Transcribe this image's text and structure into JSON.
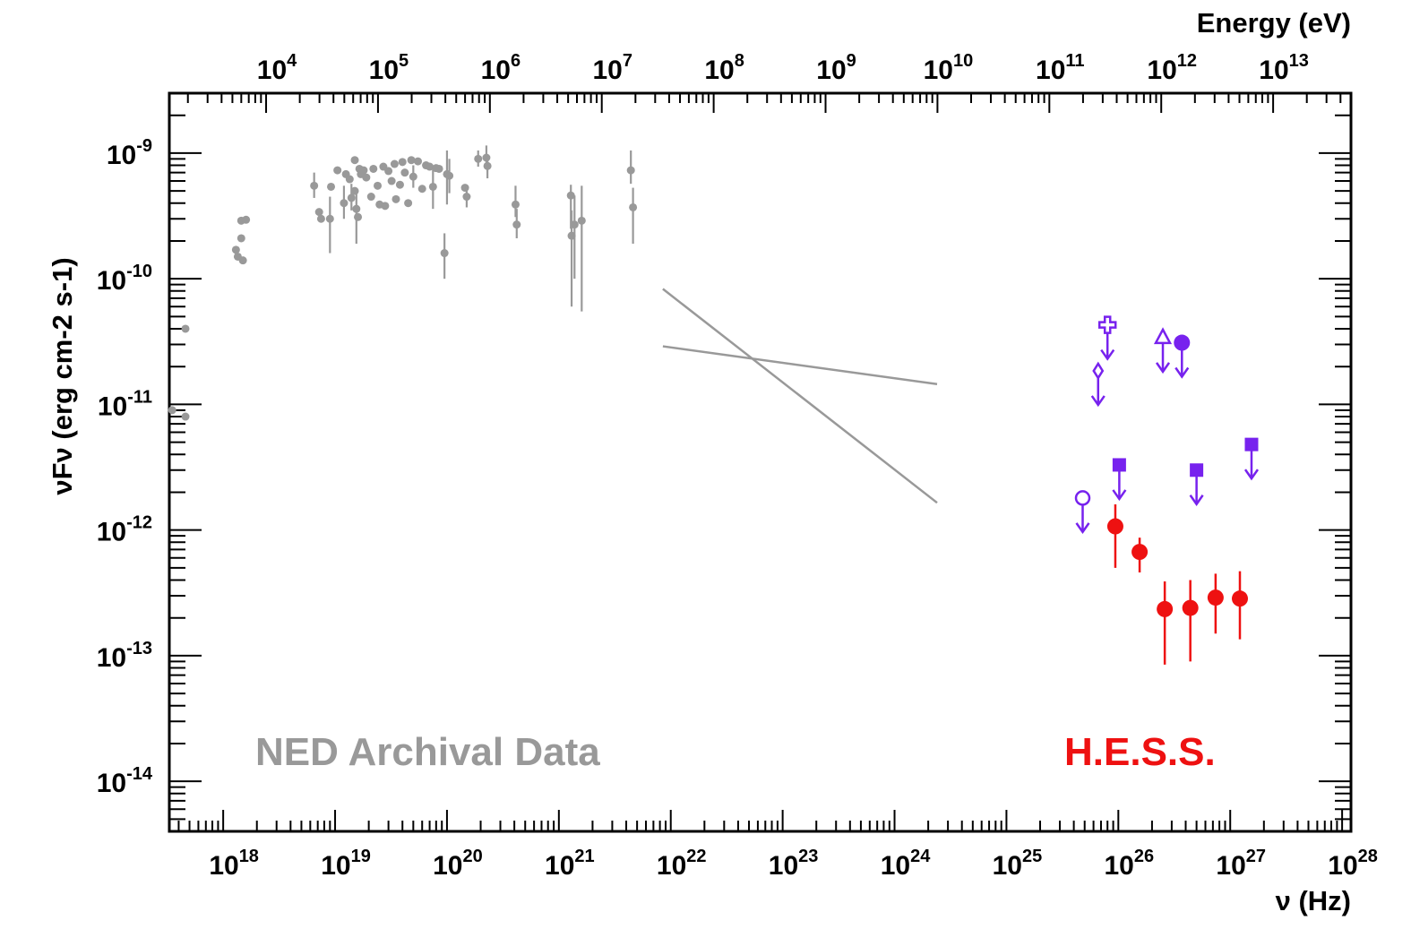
{
  "chart_data": {
    "type": "scatter",
    "title": "",
    "xlabel": "ν (Hz)",
    "x2label": "Energy (eV)",
    "ylabel": "νFν (erg cm-2 s-1)",
    "xscale": "log",
    "yscale": "log",
    "xlim": [
      3.3e+17,
      1.2e+28
    ],
    "ylim": [
      4e-15,
      3e-09
    ],
    "grid": false,
    "x_ticks": [
      {
        "exp": "18",
        "value": 1e+18
      },
      {
        "exp": "19",
        "value": 1e+19
      },
      {
        "exp": "20",
        "value": 1e+20
      },
      {
        "exp": "21",
        "value": 1e+21
      },
      {
        "exp": "22",
        "value": 1e+22
      },
      {
        "exp": "23",
        "value": 1e+23
      },
      {
        "exp": "24",
        "value": 1e+24
      },
      {
        "exp": "25",
        "value": 1e+25
      },
      {
        "exp": "26",
        "value": 1e+26
      },
      {
        "exp": "27",
        "value": 1e+27
      },
      {
        "exp": "28",
        "value": 1e+28
      }
    ],
    "x2_ticks": [
      {
        "exp": "4",
        "value": 10000.0
      },
      {
        "exp": "5",
        "value": 100000.0
      },
      {
        "exp": "6",
        "value": 1000000.0
      },
      {
        "exp": "7",
        "value": 10000000.0
      },
      {
        "exp": "8",
        "value": 100000000.0
      },
      {
        "exp": "9",
        "value": 1000000000.0
      },
      {
        "exp": "10",
        "value": 10000000000.0
      },
      {
        "exp": "11",
        "value": 100000000000.0
      },
      {
        "exp": "12",
        "value": 1000000000000.0
      },
      {
        "exp": "13",
        "value": 10000000000000.0
      }
    ],
    "y_ticks": [
      {
        "exp": "-9",
        "value": 1e-09
      },
      {
        "exp": "-10",
        "value": 1e-10
      },
      {
        "exp": "-11",
        "value": 1e-11
      },
      {
        "exp": "-12",
        "value": 1e-12
      },
      {
        "exp": "-13",
        "value": 1e-13
      },
      {
        "exp": "-14",
        "value": 1e-14
      }
    ],
    "colors": {
      "ned": "#999999",
      "hess": "#ee1111",
      "limits": "#7722ee"
    },
    "annotations": {
      "ned": "NED Archival Data",
      "hess": "H.E.S.S."
    },
    "series": [
      {
        "marker": "filled-circle",
        "color": "#999999",
        "points": [
          {
            "x": 3.5e+17,
            "y": 9e-12
          },
          {
            "x": 4.6e+17,
            "y": 4e-11
          },
          {
            "x": 4.6e+17,
            "y": 8e-12
          },
          {
            "x": 1.3e+18,
            "y": 1.7e-10
          },
          {
            "x": 1.35e+18,
            "y": 1.5e-10
          },
          {
            "x": 1.45e+18,
            "y": 2.1e-10
          },
          {
            "x": 1.5e+18,
            "y": 1.4e-10
          },
          {
            "x": 1.45e+18,
            "y": 2.9e-10
          },
          {
            "x": 1.6e+18,
            "y": 2.95e-10
          },
          {
            "x": 6.5e+18,
            "y": 5.5e-10,
            "ylo": 4.4e-10,
            "yhi": 7e-10
          },
          {
            "x": 7.2e+18,
            "y": 3.4e-10
          },
          {
            "x": 7.5e+18,
            "y": 3e-10
          },
          {
            "x": 9e+18,
            "y": 3e-10,
            "ylo": 1.6e-10,
            "yhi": 4.5e-10
          },
          {
            "x": 9.2e+18,
            "y": 5.4e-10
          },
          {
            "x": 1.05e+19,
            "y": 7.3e-10
          },
          {
            "x": 1.2e+19,
            "y": 4e-10,
            "ylo": 3e-10,
            "yhi": 5.5e-10
          },
          {
            "x": 1.25e+19,
            "y": 6.8e-10
          },
          {
            "x": 1.35e+19,
            "y": 6.2e-10
          },
          {
            "x": 1.4e+19,
            "y": 4.4e-10,
            "ylo": 3.5e-10,
            "yhi": 5.7e-10
          },
          {
            "x": 1.5e+19,
            "y": 8.8e-10
          },
          {
            "x": 1.5e+19,
            "y": 5e-10
          },
          {
            "x": 1.55e+19,
            "y": 3.6e-10,
            "ylo": 1.9e-10,
            "yhi": 5e-10
          },
          {
            "x": 1.6e+19,
            "y": 3.1e-10
          },
          {
            "x": 1.65e+19,
            "y": 7.5e-10
          },
          {
            "x": 1.7e+19,
            "y": 6.8e-10
          },
          {
            "x": 1.8e+19,
            "y": 7.3e-10
          },
          {
            "x": 1.9e+19,
            "y": 6.4e-10
          },
          {
            "x": 2.1e+19,
            "y": 4.5e-10
          },
          {
            "x": 2.2e+19,
            "y": 7.5e-10
          },
          {
            "x": 2.4e+19,
            "y": 5.5e-10
          },
          {
            "x": 2.5e+19,
            "y": 3.9e-10
          },
          {
            "x": 2.7e+19,
            "y": 7.8e-10
          },
          {
            "x": 2.8e+19,
            "y": 3.8e-10
          },
          {
            "x": 3e+19,
            "y": 7.2e-10
          },
          {
            "x": 3.2e+19,
            "y": 6e-10
          },
          {
            "x": 3.4e+19,
            "y": 8.2e-10
          },
          {
            "x": 3.5e+19,
            "y": 4.3e-10
          },
          {
            "x": 3.8e+19,
            "y": 5.6e-10
          },
          {
            "x": 4e+19,
            "y": 8.5e-10
          },
          {
            "x": 4.2e+19,
            "y": 7e-10
          },
          {
            "x": 4.5e+19,
            "y": 4e-10
          },
          {
            "x": 4.8e+19,
            "y": 8.8e-10
          },
          {
            "x": 5e+19,
            "y": 6.5e-10,
            "ylo": 5.3e-10,
            "yhi": 8e-10
          },
          {
            "x": 5.5e+19,
            "y": 8.6e-10
          },
          {
            "x": 6e+19,
            "y": 5.2e-10
          },
          {
            "x": 6.5e+19,
            "y": 8e-10
          },
          {
            "x": 7e+19,
            "y": 7.8e-10
          },
          {
            "x": 7.5e+19,
            "y": 5.4e-10,
            "ylo": 3.6e-10,
            "yhi": 7.5e-10
          },
          {
            "x": 8e+19,
            "y": 7.6e-10
          },
          {
            "x": 8.5e+19,
            "y": 7.5e-10
          },
          {
            "x": 9.5e+19,
            "y": 1.6e-10,
            "ylo": 1e-10,
            "yhi": 2.3e-10
          },
          {
            "x": 1e+20,
            "y": 6.8e-10,
            "ylo": 3.9e-10,
            "yhi": 1.05e-09
          },
          {
            "x": 1.05e+20,
            "y": 6.6e-10,
            "ylo": 4.8e-10,
            "yhi": 9e-10
          },
          {
            "x": 1.45e+20,
            "y": 5.3e-10
          },
          {
            "x": 1.5e+20,
            "y": 4.5e-10,
            "ylo": 3.7e-10,
            "yhi": 5.5e-10
          },
          {
            "x": 1.9e+20,
            "y": 9e-10,
            "ylo": 7.8e-10,
            "yhi": 1.05e-09
          },
          {
            "x": 2.25e+20,
            "y": 9.2e-10,
            "ylo": 8.2e-10,
            "yhi": 1.15e-09
          },
          {
            "x": 2.3e+20,
            "y": 7.9e-10,
            "ylo": 6.3e-10,
            "yhi": 9.5e-10
          },
          {
            "x": 4.1e+20,
            "y": 3.9e-10,
            "ylo": 3.1e-10,
            "yhi": 5.5e-10
          },
          {
            "x": 4.2e+20,
            "y": 2.7e-10,
            "ylo": 2.1e-10,
            "yhi": 3.6e-10
          },
          {
            "x": 1.28e+21,
            "y": 4.6e-10,
            "ylo": 2.5e-10,
            "yhi": 5.6e-10
          },
          {
            "x": 1.3e+21,
            "y": 2.2e-10,
            "ylo": 6e-11,
            "yhi": 3.5e-10
          },
          {
            "x": 1.38e+21,
            "y": 2.7e-10,
            "ylo": 1e-10,
            "yhi": 4.6e-10
          },
          {
            "x": 1.6e+21,
            "y": 2.9e-10,
            "ylo": 5.5e-11,
            "yhi": 5.5e-10
          },
          {
            "x": 4.4e+21,
            "y": 7.3e-10,
            "ylo": 5.7e-10,
            "yhi": 1.05e-09
          },
          {
            "x": 4.6e+21,
            "y": 3.7e-10,
            "ylo": 1.9e-10,
            "yhi": 5.3e-10
          }
        ]
      },
      {
        "marker": "line",
        "color": "#999999",
        "points": [
          {
            "x": 8.5e+21,
            "y": 2.9e-11
          },
          {
            "x": 2.4e+24,
            "y": 1.45e-11
          }
        ]
      },
      {
        "marker": "line",
        "color": "#999999",
        "points": [
          {
            "x": 8.5e+21,
            "y": 8.3e-11
          },
          {
            "x": 2.4e+24,
            "y": 1.65e-12
          }
        ]
      },
      {
        "marker": "filled-circle",
        "color": "#ee1111",
        "points": [
          {
            "x": 9.4e+25,
            "y": 1.07e-12,
            "ylo": 5e-13,
            "yhi": 1.6e-12
          },
          {
            "x": 1.55e+26,
            "y": 6.7e-13,
            "ylo": 4.6e-13,
            "yhi": 8.7e-13
          },
          {
            "x": 2.6e+26,
            "y": 2.35e-13,
            "ylo": 8.5e-14,
            "yhi": 3.9e-13
          },
          {
            "x": 4.4e+26,
            "y": 2.4e-13,
            "ylo": 9e-14,
            "yhi": 4e-13
          },
          {
            "x": 7.4e+26,
            "y": 2.9e-13,
            "ylo": 1.5e-13,
            "yhi": 4.5e-13
          },
          {
            "x": 1.22e+27,
            "y": 2.85e-13,
            "ylo": 1.35e-13,
            "yhi": 4.7e-13
          }
        ]
      },
      {
        "marker": "open-circle",
        "color": "#7722ee",
        "upper_limit": true,
        "points": [
          {
            "x": 4.8e+25,
            "y": 1.8e-12
          }
        ]
      },
      {
        "marker": "filled-square",
        "color": "#7722ee",
        "upper_limit": true,
        "points": [
          {
            "x": 1.02e+26,
            "y": 3.3e-12
          },
          {
            "x": 5e+26,
            "y": 3e-12
          },
          {
            "x": 1.55e+27,
            "y": 4.8e-12
          }
        ]
      },
      {
        "marker": "open-diamond",
        "color": "#7722ee",
        "upper_limit": true,
        "points": [
          {
            "x": 6.6e+25,
            "y": 1.85e-11
          }
        ]
      },
      {
        "marker": "open-cross",
        "color": "#7722ee",
        "upper_limit": true,
        "points": [
          {
            "x": 8e+25,
            "y": 4.3e-11
          }
        ]
      },
      {
        "marker": "open-triangle",
        "color": "#7722ee",
        "upper_limit": true,
        "points": [
          {
            "x": 2.5e+26,
            "y": 3.4e-11
          }
        ]
      },
      {
        "marker": "filled-circle",
        "color": "#7722ee",
        "upper_limit": true,
        "points": [
          {
            "x": 3.7e+26,
            "y": 3.1e-11
          }
        ]
      }
    ]
  }
}
